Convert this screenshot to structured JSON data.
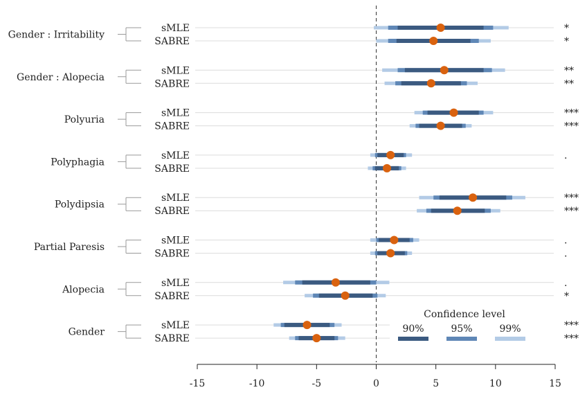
{
  "colors": {
    "ci90": "#3b5a80",
    "ci95": "#5f87b6",
    "ci99": "#b3cbe6",
    "point": "#d9620f",
    "refline": "#333333",
    "rowline": "#dcdcdc"
  },
  "chart_data": {
    "type": "forest",
    "xlim": [
      -15,
      15
    ],
    "xticks": [
      -15,
      -10,
      -5,
      0,
      5,
      10,
      15
    ],
    "legend": {
      "title": "Confidence level",
      "items": [
        "90%",
        "95%",
        "99%"
      ],
      "placement": "bottom-right"
    },
    "groups": [
      {
        "label": "Gender : Irritability",
        "rows": [
          {
            "method": "sMLE",
            "est": 5.4,
            "ci90": [
              1.8,
              9.0
            ],
            "ci95": [
              1.0,
              9.8
            ],
            "ci99": [
              -0.2,
              11.1
            ],
            "sig": "*"
          },
          {
            "method": "SABRE",
            "est": 4.8,
            "ci90": [
              1.7,
              7.9
            ],
            "ci95": [
              1.0,
              8.6
            ],
            "ci99": [
              0.0,
              9.6
            ],
            "sig": "*"
          }
        ]
      },
      {
        "label": "Gender : Alopecia",
        "rows": [
          {
            "method": "sMLE",
            "est": 5.7,
            "ci90": [
              2.4,
              9.0
            ],
            "ci95": [
              1.8,
              9.7
            ],
            "ci99": [
              0.5,
              10.8
            ],
            "sig": "**"
          },
          {
            "method": "SABRE",
            "est": 4.6,
            "ci90": [
              2.1,
              7.1
            ],
            "ci95": [
              1.6,
              7.6
            ],
            "ci99": [
              0.7,
              8.5
            ],
            "sig": "**"
          }
        ]
      },
      {
        "label": "Polyuria",
        "rows": [
          {
            "method": "sMLE",
            "est": 6.5,
            "ci90": [
              4.3,
              8.6
            ],
            "ci95": [
              3.9,
              9.0
            ],
            "ci99": [
              3.2,
              9.8
            ],
            "sig": "***"
          },
          {
            "method": "SABRE",
            "est": 5.4,
            "ci90": [
              3.6,
              7.2
            ],
            "ci95": [
              3.3,
              7.5
            ],
            "ci99": [
              2.8,
              8.0
            ],
            "sig": "***"
          }
        ]
      },
      {
        "label": "Polyphagia",
        "rows": [
          {
            "method": "sMLE",
            "est": 1.2,
            "ci90": [
              0.1,
              2.3
            ],
            "ci95": [
              -0.1,
              2.5
            ],
            "ci99": [
              -0.5,
              3.0
            ],
            "sig": "."
          },
          {
            "method": "SABRE",
            "est": 0.9,
            "ci90": [
              -0.1,
              1.9
            ],
            "ci95": [
              -0.3,
              2.1
            ],
            "ci99": [
              -0.7,
              2.5
            ],
            "sig": ""
          }
        ]
      },
      {
        "label": "Polydipsia",
        "rows": [
          {
            "method": "sMLE",
            "est": 8.1,
            "ci90": [
              5.3,
              10.9
            ],
            "ci95": [
              4.8,
              11.4
            ],
            "ci99": [
              3.6,
              12.5
            ],
            "sig": "***"
          },
          {
            "method": "SABRE",
            "est": 6.8,
            "ci90": [
              4.6,
              9.1
            ],
            "ci95": [
              4.2,
              9.6
            ],
            "ci99": [
              3.4,
              10.4
            ],
            "sig": "***"
          }
        ]
      },
      {
        "label": "Partial Paresis",
        "rows": [
          {
            "method": "sMLE",
            "est": 1.5,
            "ci90": [
              0.2,
              2.8
            ],
            "ci95": [
              0.0,
              3.1
            ],
            "ci99": [
              -0.5,
              3.6
            ],
            "sig": "."
          },
          {
            "method": "SABRE",
            "est": 1.2,
            "ci90": [
              0.1,
              2.4
            ],
            "ci95": [
              -0.1,
              2.6
            ],
            "ci99": [
              -0.5,
              3.0
            ],
            "sig": "."
          }
        ]
      },
      {
        "label": "Alopecia",
        "rows": [
          {
            "method": "sMLE",
            "est": -3.4,
            "ci90": [
              -6.2,
              -0.5
            ],
            "ci95": [
              -6.8,
              0.0
            ],
            "ci99": [
              -7.8,
              1.1
            ],
            "sig": "."
          },
          {
            "method": "SABRE",
            "est": -2.6,
            "ci90": [
              -4.8,
              -0.3
            ],
            "ci95": [
              -5.3,
              0.1
            ],
            "ci99": [
              -6.0,
              0.8
            ],
            "sig": "*"
          }
        ]
      },
      {
        "label": "Gender",
        "rows": [
          {
            "method": "sMLE",
            "est": -5.8,
            "ci90": [
              -7.7,
              -3.9
            ],
            "ci95": [
              -8.0,
              -3.5
            ],
            "ci99": [
              -8.6,
              -2.9
            ],
            "sig": "***"
          },
          {
            "method": "SABRE",
            "est": -5.0,
            "ci90": [
              -6.5,
              -3.5
            ],
            "ci95": [
              -6.8,
              -3.2
            ],
            "ci99": [
              -7.3,
              -2.6
            ],
            "sig": "***"
          }
        ]
      }
    ]
  }
}
